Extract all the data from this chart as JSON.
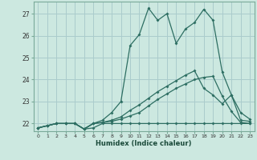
{
  "xlabel": "Humidex (Indice chaleur)",
  "background_color": "#cce8e0",
  "grid_color": "#aacccc",
  "line_color": "#2d6e62",
  "xlim": [
    -0.5,
    23.5
  ],
  "ylim": [
    21.65,
    27.55
  ],
  "yticks": [
    22,
    23,
    24,
    25,
    26,
    27
  ],
  "xticks": [
    0,
    1,
    2,
    3,
    4,
    5,
    6,
    7,
    8,
    9,
    10,
    11,
    12,
    13,
    14,
    15,
    16,
    17,
    18,
    19,
    20,
    21,
    22,
    23
  ],
  "line1_x": [
    0,
    1,
    2,
    3,
    4,
    5,
    6,
    7,
    8,
    9,
    10,
    11,
    12,
    13,
    14,
    15,
    16,
    17,
    18,
    19,
    20,
    21,
    22,
    23
  ],
  "line1_y": [
    21.8,
    21.9,
    22.0,
    22.0,
    22.0,
    21.75,
    22.0,
    22.15,
    22.5,
    23.0,
    25.55,
    26.05,
    27.25,
    26.7,
    27.0,
    25.65,
    26.3,
    26.6,
    27.2,
    26.7,
    24.35,
    23.3,
    22.5,
    22.2
  ],
  "line2_x": [
    0,
    1,
    2,
    3,
    4,
    5,
    6,
    7,
    8,
    9,
    10,
    11,
    12,
    13,
    14,
    15,
    16,
    17,
    18,
    19,
    20,
    21,
    22,
    23
  ],
  "line2_y": [
    21.8,
    21.9,
    22.0,
    22.0,
    22.0,
    21.75,
    22.0,
    22.05,
    22.1,
    22.2,
    22.35,
    22.5,
    22.8,
    23.1,
    23.35,
    23.6,
    23.8,
    24.0,
    24.1,
    24.15,
    23.25,
    22.55,
    22.05,
    22.0
  ],
  "line3_x": [
    0,
    1,
    2,
    3,
    4,
    5,
    6,
    7,
    8,
    9,
    10,
    11,
    12,
    13,
    14,
    15,
    16,
    17,
    18,
    19,
    20,
    21,
    22,
    23
  ],
  "line3_y": [
    21.8,
    21.9,
    22.0,
    22.0,
    22.0,
    21.75,
    21.8,
    22.0,
    22.0,
    22.0,
    22.0,
    22.0,
    22.0,
    22.0,
    22.0,
    22.0,
    22.0,
    22.0,
    22.0,
    22.0,
    22.0,
    22.0,
    22.0,
    22.0
  ],
  "line4_x": [
    0,
    1,
    2,
    3,
    4,
    5,
    6,
    7,
    8,
    9,
    10,
    11,
    12,
    13,
    14,
    15,
    16,
    17,
    18,
    19,
    20,
    21,
    22,
    23
  ],
  "line4_y": [
    21.8,
    21.9,
    22.0,
    22.0,
    22.0,
    21.75,
    22.0,
    22.05,
    22.15,
    22.3,
    22.6,
    22.85,
    23.15,
    23.45,
    23.7,
    23.95,
    24.2,
    24.4,
    23.6,
    23.3,
    22.9,
    23.3,
    22.15,
    22.1
  ]
}
